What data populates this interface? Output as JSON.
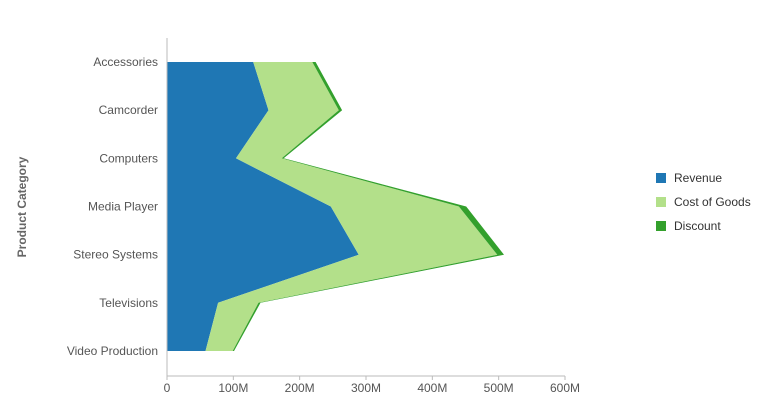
{
  "chart_data": {
    "type": "area",
    "orientation": "horizontal",
    "stacked": true,
    "title": "",
    "xlabel": "",
    "ylabel": "Product Category",
    "categories": [
      "Accessories",
      "Camcorder",
      "Computers",
      "Media Player",
      "Stereo Systems",
      "Televisions",
      "Video Production"
    ],
    "x_ticks": [
      "0",
      "100M",
      "200M",
      "300M",
      "400M",
      "500M",
      "600M"
    ],
    "xlim": [
      0,
      600000000
    ],
    "series": [
      {
        "name": "Revenue",
        "color": "#1f77b4",
        "values": [
          130000000,
          153000000,
          104000000,
          247000000,
          289000000,
          77000000,
          58000000
        ]
      },
      {
        "name": "Cost of Goods",
        "color": "#b3e08a",
        "values": [
          89000000,
          106000000,
          69000000,
          193000000,
          209000000,
          61000000,
          41000000
        ]
      },
      {
        "name": "Discount",
        "color": "#33a02c",
        "values": [
          5000000,
          5000000,
          3000000,
          11000000,
          10000000,
          3000000,
          2000000
        ]
      }
    ],
    "legend_position": "right",
    "grid": false
  }
}
